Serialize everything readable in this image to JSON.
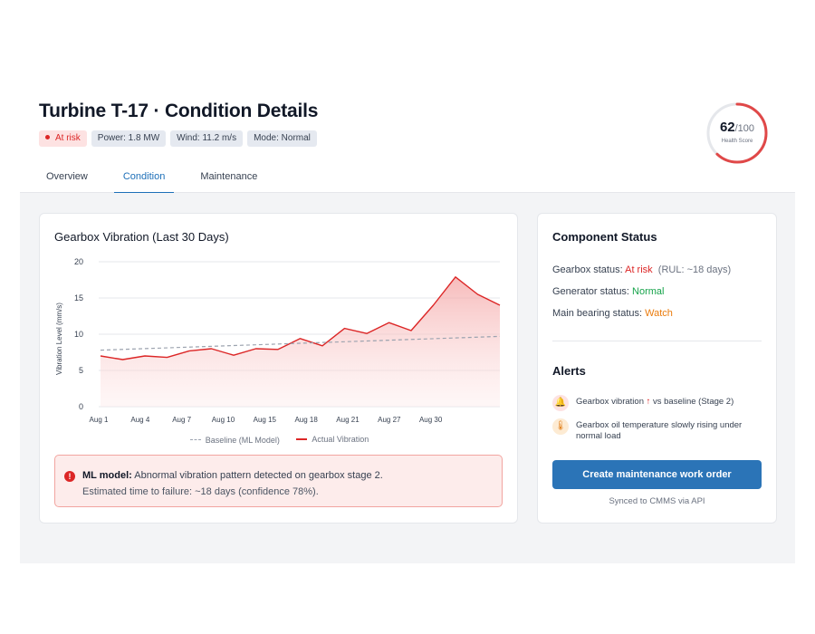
{
  "header": {
    "title": "Turbine T-17 · Condition Details",
    "chips": {
      "risk": "At risk",
      "power": "Power: 1.8 MW",
      "wind": "Wind: 11.2 m/s",
      "mode": "Mode: Normal"
    },
    "tabs": [
      "Overview",
      "Condition",
      "Maintenance"
    ],
    "active_tab": "Condition",
    "health": {
      "score": "62",
      "max": "/100",
      "label": "Health Score",
      "value": 62
    }
  },
  "chart": {
    "title": "Gearbox Vibration (Last 30 Days)",
    "legend": {
      "baseline": "Baseline (ML Model)",
      "actual": "Actual Vibration"
    }
  },
  "chart_data": {
    "type": "line",
    "ylabel": "Vibration Level (mm/s)",
    "ylim": [
      0,
      20
    ],
    "yticks": [
      0,
      5,
      10,
      15,
      20
    ],
    "xlim": [
      1,
      30
    ],
    "xticks": [
      {
        "x": 1,
        "label": "Aug 1"
      },
      {
        "x": 4,
        "label": "Aug 4"
      },
      {
        "x": 7,
        "label": "Aug 7"
      },
      {
        "x": 10,
        "label": "Aug 10"
      },
      {
        "x": 13,
        "label": "Aug 15"
      },
      {
        "x": 16,
        "label": "Aug 18"
      },
      {
        "x": 19,
        "label": "Aug 21"
      },
      {
        "x": 22,
        "label": "Aug 27"
      },
      {
        "x": 25,
        "label": "Aug 30"
      }
    ],
    "grid": true,
    "legend_position": "bottom",
    "series": [
      {
        "name": "Actual Vibration",
        "color": "#dc2626",
        "style": "solid",
        "fill": true,
        "x": [
          1,
          2,
          3,
          4,
          5,
          6,
          7,
          8,
          9,
          10,
          11,
          12,
          13,
          14,
          15,
          16,
          17,
          18,
          19,
          20,
          21,
          22,
          23,
          24,
          25
        ],
        "y": [
          7.0,
          6.5,
          7.0,
          6.8,
          7.7,
          8.0,
          7.1,
          8.0,
          7.9,
          9.4,
          8.4,
          10.8,
          10.1,
          11.6,
          10.5,
          14.0,
          17.9,
          15.5,
          14.0,
          14.0,
          14.0,
          14.0,
          14.0,
          14.0,
          14.0
        ]
      },
      {
        "name": "Baseline (ML Model)",
        "color": "#9ca3af",
        "style": "dashed",
        "x": [
          1,
          25
        ],
        "y": [
          7.8,
          9.7
        ]
      }
    ]
  },
  "ml_alert": {
    "bold": "ML model:",
    "text": " Abnormal vibration pattern detected on gearbox stage 2.",
    "line2": "Estimated time to failure: ~18 days (confidence 78%)."
  },
  "status": {
    "title": "Component Status",
    "gearbox_label": "Gearbox status: ",
    "gearbox_value": "At risk",
    "gearbox_rul": "(RUL: ~18 days)",
    "generator_label": "Generator status: ",
    "generator_value": "Normal",
    "bearing_label": "Main bearing status: ",
    "bearing_value": "Watch",
    "alerts_title": "Alerts",
    "alert1_a": "Gearbox vibration ",
    "alert1_b": " vs baseline (Stage 2)",
    "alert2": "Gearbox oil temperature slowly rising under normal load",
    "button": "Create maintenance work order",
    "synced": "Synced to CMMS via API"
  }
}
